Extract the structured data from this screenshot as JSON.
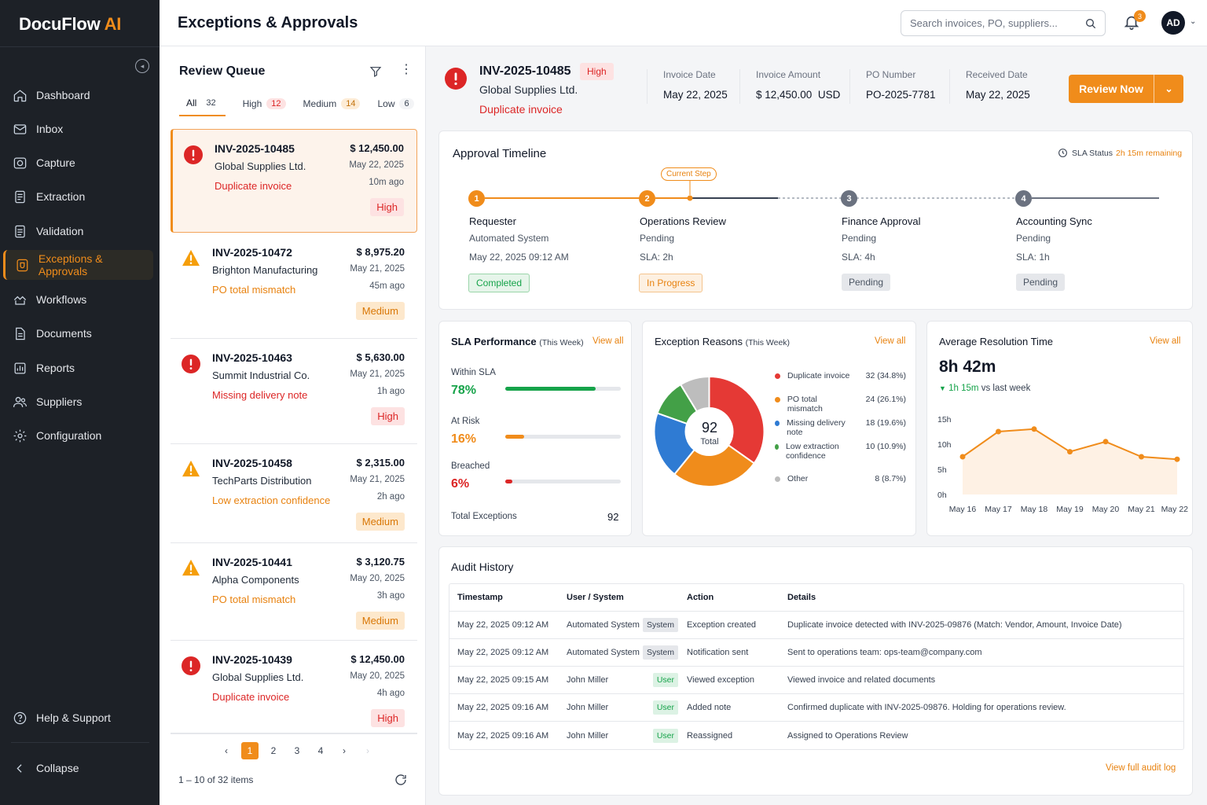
{
  "app": {
    "brand_main": "DocuFlow ",
    "brand_accent": "AI"
  },
  "colors": {
    "accent": "#f08c1b",
    "sidebar_bg": "#1d2127",
    "danger": "#dc2626",
    "success": "#16a34a"
  },
  "sidebar": {
    "items": [
      {
        "label": "Dashboard",
        "icon": "home-icon"
      },
      {
        "label": "Inbox",
        "icon": "inbox-icon"
      },
      {
        "label": "Capture",
        "icon": "camera-icon"
      },
      {
        "label": "Extraction",
        "icon": "document-icon"
      },
      {
        "label": "Validation",
        "icon": "checklist-icon"
      },
      {
        "label": "Exceptions & Approvals",
        "icon": "shield-icon"
      },
      {
        "label": "Workflows",
        "icon": "workflow-icon"
      },
      {
        "label": "Documents",
        "icon": "file-icon"
      },
      {
        "label": "Reports",
        "icon": "bar-chart-icon"
      },
      {
        "label": "Suppliers",
        "icon": "users-icon"
      },
      {
        "label": "Configuration",
        "icon": "gear-icon"
      }
    ],
    "active": "Exceptions & Approvals",
    "help": "Help & Support",
    "collapse": "Collapse"
  },
  "header": {
    "title": "Exceptions & Approvals",
    "search_placeholder": "Search invoices, PO, suppliers...",
    "notification_count": "3",
    "avatar": "AD"
  },
  "queue": {
    "title": "Review Queue",
    "tabs": [
      {
        "label": "All",
        "count": "32"
      },
      {
        "label": "High",
        "count": "12"
      },
      {
        "label": "Medium",
        "count": "14"
      },
      {
        "label": "Low",
        "count": "6"
      }
    ],
    "items": [
      {
        "id": "INV-2025-10485",
        "supplier": "Global Supplies Ltd.",
        "reason": "Duplicate invoice",
        "amount": "$ 12,450.00",
        "date": "May 22, 2025",
        "ago": "10m ago",
        "priority": "High"
      },
      {
        "id": "INV-2025-10472",
        "supplier": "Brighton Manufacturing",
        "reason": "PO total mismatch",
        "amount": "$ 8,975.20",
        "date": "May 21, 2025",
        "ago": "45m ago",
        "priority": "Medium"
      },
      {
        "id": "INV-2025-10463",
        "supplier": "Summit Industrial Co.",
        "reason": "Missing delivery note",
        "amount": "$ 5,630.00",
        "date": "May 21, 2025",
        "ago": "1h ago",
        "priority": "High"
      },
      {
        "id": "INV-2025-10458",
        "supplier": "TechParts Distribution",
        "reason": "Low extraction confidence",
        "amount": "$ 2,315.00",
        "date": "May 21, 2025",
        "ago": "2h ago",
        "priority": "Medium"
      },
      {
        "id": "INV-2025-10441",
        "supplier": "Alpha Components",
        "reason": "PO total mismatch",
        "amount": "$ 3,120.75",
        "date": "May 20, 2025",
        "ago": "3h ago",
        "priority": "Medium"
      },
      {
        "id": "INV-2025-10439",
        "supplier": "Global Supplies Ltd.",
        "reason": "Duplicate invoice",
        "amount": "$ 12,450.00",
        "date": "May 20, 2025",
        "ago": "4h ago",
        "priority": "High"
      }
    ],
    "pages": [
      "1",
      "2",
      "3",
      "4"
    ],
    "current_page": "1",
    "footer": "1 – 10 of 32 items"
  },
  "detail": {
    "id": "INV-2025-10485",
    "priority": "High",
    "supplier": "Global Supplies Ltd.",
    "reason": "Duplicate invoice",
    "meta": [
      {
        "label": "Invoice Date",
        "value": "May 22, 2025"
      },
      {
        "label": "Invoice Amount",
        "value": "$ 12,450.00  USD"
      },
      {
        "label": "PO Number",
        "value": "PO-2025-7781"
      },
      {
        "label": "Received Date",
        "value": "May 22, 2025"
      }
    ],
    "review_button": "Review Now"
  },
  "timeline": {
    "title": "Approval Timeline",
    "sla_label": "SLA Status",
    "sla_value": "2h 15m remaining",
    "current_step": "Current Step",
    "steps": [
      {
        "num": "1",
        "name": "Requester",
        "sub1": "Automated System",
        "sub2": "May 22, 2025 09:12 AM",
        "status": "Completed"
      },
      {
        "num": "2",
        "name": "Operations Review",
        "sub1": "Pending",
        "sub2": "SLA: 2h",
        "status": "In Progress"
      },
      {
        "num": "3",
        "name": "Finance Approval",
        "sub1": "Pending",
        "sub2": "SLA: 4h",
        "status": "Pending"
      },
      {
        "num": "4",
        "name": "Accounting Sync",
        "sub1": "Pending",
        "sub2": "SLA: 1h",
        "status": "Pending"
      }
    ]
  },
  "sla": {
    "title": "SLA Performance",
    "period": "(This Week)",
    "view_all": "View all",
    "rows": [
      {
        "label": "Within SLA",
        "pct": "78%",
        "value": 78,
        "color": "#16a34a"
      },
      {
        "label": "At Risk",
        "pct": "16%",
        "value": 16,
        "color": "#f08c1b"
      },
      {
        "label": "Breached",
        "pct": "6%",
        "value": 6,
        "color": "#dc2626"
      }
    ],
    "total_label": "Total Exceptions",
    "total_value": "92"
  },
  "reasons": {
    "title": "Exception Reasons",
    "period": "(This Week)",
    "view_all": "View all",
    "center_value": "92",
    "center_label": "Total",
    "items": [
      {
        "label": "Duplicate invoice",
        "value": "32 (34.8%)",
        "count": 32,
        "color": "#e53935"
      },
      {
        "label": "PO total mismatch",
        "value": "24 (26.1%)",
        "count": 24,
        "color": "#f08c1b"
      },
      {
        "label": "Missing delivery note",
        "value": "18 (19.6%)",
        "count": 18,
        "color": "#2f7bd3"
      },
      {
        "label": "Low extraction confidence",
        "value": "10 (10.9%)",
        "count": 10,
        "color": "#43a047"
      },
      {
        "label": "Other",
        "value": "8 (8.7%)",
        "count": 8,
        "color": "#bdbdbd"
      }
    ]
  },
  "resolution": {
    "title": "Average Resolution Time",
    "view_all": "View all",
    "value": "8h 42m",
    "delta": "1h 15m",
    "delta_suffix": "vs last week"
  },
  "chart_data": {
    "type": "area",
    "title": "Average Resolution Time",
    "categories": [
      "May 16",
      "May 17",
      "May 18",
      "May 19",
      "May 20",
      "May 21",
      "May 22"
    ],
    "values": [
      7.5,
      12.5,
      13,
      8.5,
      10.5,
      7.5,
      7
    ],
    "yticks": [
      "15h",
      "10h",
      "5h",
      "0h"
    ],
    "ylim": [
      0,
      15
    ],
    "color": "#f08c1b"
  },
  "audit": {
    "title": "Audit History",
    "headers": [
      "Timestamp",
      "User / System",
      "Action",
      "Details"
    ],
    "rows": [
      {
        "ts": "May 22, 2025 09:12 AM",
        "user": "Automated System",
        "tag": "System",
        "action": "Exception created",
        "details": "Duplicate invoice detected with INV-2025-09876 (Match: Vendor, Amount, Invoice Date)"
      },
      {
        "ts": "May 22, 2025 09:12 AM",
        "user": "Automated System",
        "tag": "System",
        "action": "Notification sent",
        "details": "Sent to operations team: ops-team@company.com"
      },
      {
        "ts": "May 22, 2025 09:15 AM",
        "user": "John Miller",
        "tag": "User",
        "action": "Viewed exception",
        "details": "Viewed invoice and related documents"
      },
      {
        "ts": "May 22, 2025 09:16 AM",
        "user": "John Miller",
        "tag": "User",
        "action": "Added note",
        "details": "Confirmed duplicate with INV-2025-09876. Holding for operations review."
      },
      {
        "ts": "May 22, 2025 09:16 AM",
        "user": "John Miller",
        "tag": "User",
        "action": "Reassigned",
        "details": "Assigned to Operations Review"
      }
    ],
    "footer_link": "View full audit log"
  }
}
